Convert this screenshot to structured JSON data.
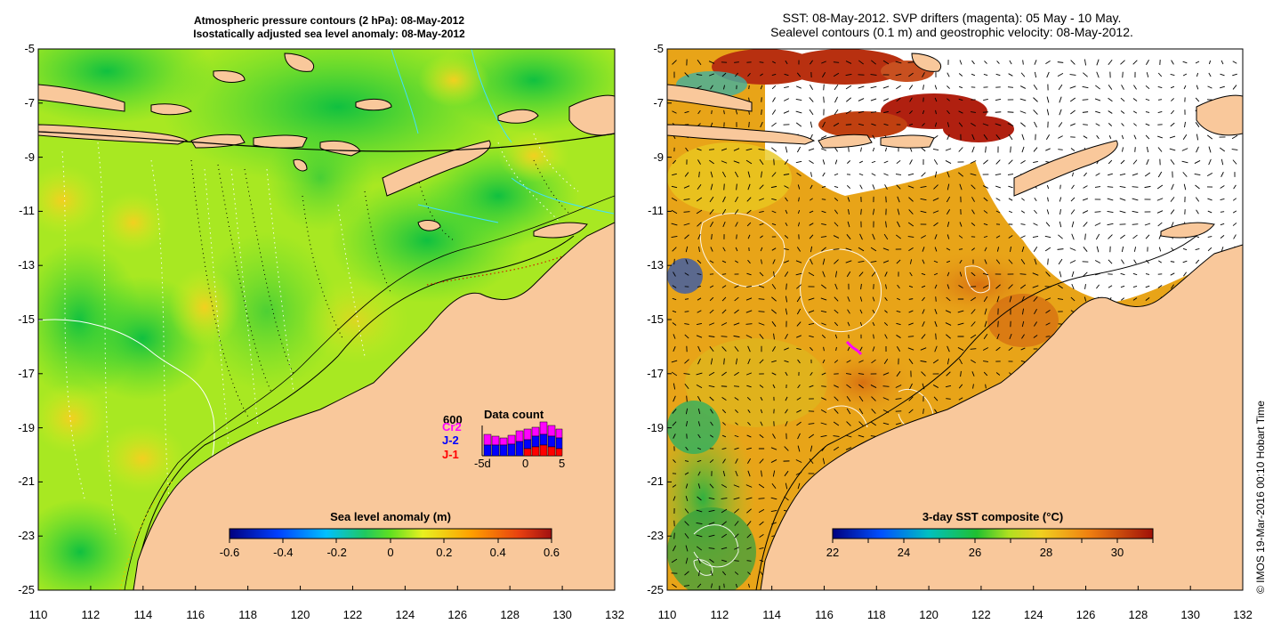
{
  "left_panel": {
    "title_line1": "Atmospheric pressure contours (2 hPa): 08-May-2012",
    "title_line2": "Isostatically adjusted sea level anomaly: 08-May-2012",
    "colorbar": {
      "title": "Sea level anomaly (m)",
      "ticks": [
        "-0.6",
        "-0.4",
        "-0.2",
        "0",
        "0.2",
        "0.4",
        "0.6"
      ],
      "range": [
        -0.6,
        0.6
      ]
    },
    "data_count": {
      "title": "Data count",
      "max_label": "600",
      "series": [
        "Cr2",
        "J-2",
        "J-1"
      ],
      "series_colors": [
        "#ff00ff",
        "#0000ff",
        "#ff0000"
      ],
      "x_labels": [
        "-5d",
        "0",
        "5"
      ]
    }
  },
  "right_panel": {
    "title_line1": "SST: 08-May-2012. SVP drifters (magenta): 05 May - 10 May.",
    "title_line2": "Sealevel contours (0.1 m) and geostrophic velocity: 08-May-2012.",
    "colorbar": {
      "title": "3-day SST composite (°C)",
      "ticks": [
        "22",
        "24",
        "26",
        "28",
        "30"
      ],
      "range": [
        22,
        31
      ]
    }
  },
  "axes": {
    "x_ticks": [
      "110",
      "112",
      "114",
      "116",
      "118",
      "120",
      "122",
      "124",
      "126",
      "128",
      "130",
      "132"
    ],
    "y_ticks": [
      "-5",
      "-7",
      "-9",
      "-11",
      "-13",
      "-15",
      "-17",
      "-19",
      "-21",
      "-23",
      "-25"
    ]
  },
  "credit": "© IMOS 19-Mar-2016 00:10 Hobart Time",
  "colors": {
    "land": "#f9c89b",
    "sla_green": "#33d633",
    "sla_yellowgreen": "#b8f01e",
    "sst_orange": "#e8a218",
    "sst_red": "#b8200a"
  }
}
